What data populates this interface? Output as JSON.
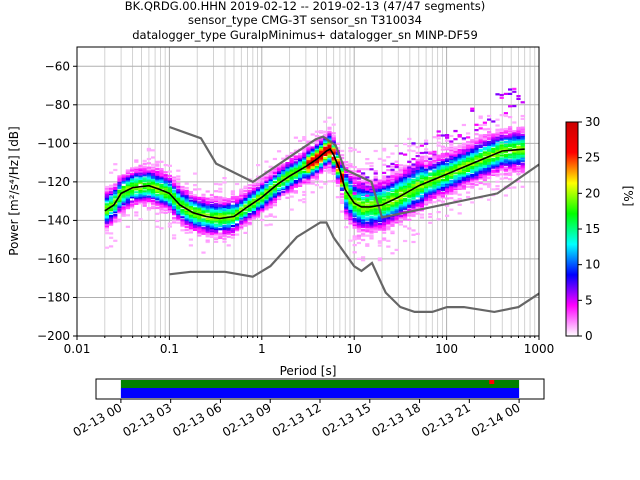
{
  "chart_data": {
    "type": "heatmap",
    "title": [
      "BK.QRDG.00.HHN   2019-02-12 -- 2019-02-13  (47/47 segments)",
      "sensor_type CMG-3T sensor_sn T310034",
      "datalogger_type GuralpMinimus+ datalogger_sn MINP-DF59"
    ],
    "xlabel": "Period [s]",
    "ylabel": "Power [m²/s⁴/Hz] [dB]",
    "x_scale": "log",
    "xlim": [
      0.01,
      1000
    ],
    "ylim": [
      -200,
      -50
    ],
    "x_ticks": [
      "0.01",
      "0.1",
      "1",
      "10",
      "100",
      "1000"
    ],
    "y_ticks": [
      "−200",
      "−180",
      "−160",
      "−140",
      "−120",
      "−100",
      "−80",
      "−60"
    ],
    "grid": true,
    "colorbar": {
      "label": "[%]",
      "range": [
        0,
        30
      ],
      "ticks": [
        "0",
        "5",
        "10",
        "15",
        "20",
        "25",
        "30"
      ],
      "colors": [
        "#ffffff",
        "#ff00ff",
        "#0000ff",
        "#00ffff",
        "#00ff00",
        "#ffff00",
        "#ff0000",
        "#cc0000"
      ]
    },
    "noise_model_high": {
      "color": "#666666",
      "x": [
        0.1,
        0.22,
        0.32,
        0.8,
        3.8,
        4.6,
        6.3,
        7.9,
        15.4,
        20,
        354.8,
        1000
      ],
      "y": [
        -91.5,
        -97.4,
        -110.5,
        -120,
        -98,
        -96.5,
        -101,
        -113.5,
        -120,
        -138.5,
        -126,
        -111
      ]
    },
    "noise_model_low": {
      "color": "#666666",
      "x": [
        0.1,
        0.17,
        0.4,
        0.8,
        1.24,
        2.4,
        4.3,
        5,
        6,
        10,
        12,
        15.6,
        21.9,
        31.6,
        45,
        70,
        101,
        154,
        328,
        600,
        1000
      ],
      "y": [
        -168,
        -166.7,
        -166.7,
        -169.2,
        -163.7,
        -148.6,
        -141.1,
        -141.1,
        -149,
        -163.8,
        -166.2,
        -162.1,
        -177.5,
        -185,
        -187.5,
        -187.5,
        -185,
        -185,
        -187.5,
        -185,
        -178
      ]
    },
    "mode_curve": {
      "color": "#000000",
      "x": [
        0.02,
        0.025,
        0.03,
        0.04,
        0.06,
        0.08,
        0.1,
        0.13,
        0.18,
        0.25,
        0.35,
        0.5,
        0.7,
        1,
        1.5,
        2,
        3,
        4,
        5,
        5.5,
        6,
        7,
        8,
        10,
        12,
        15,
        20,
        30,
        50,
        100,
        200,
        400,
        700
      ],
      "y": [
        -135,
        -132,
        -126,
        -123,
        -122,
        -124,
        -126,
        -132,
        -136,
        -138,
        -139,
        -138,
        -133,
        -128,
        -121,
        -117,
        -112,
        -108,
        -104,
        -103,
        -106,
        -114,
        -124,
        -131,
        -133,
        -133,
        -132,
        -128,
        -122,
        -116,
        -110,
        -104,
        -103
      ]
    },
    "time_axis": {
      "tick_labels": [
        "02-13 00",
        "02-13 03",
        "02-13 06",
        "02-13 09",
        "02-13 12",
        "02-13 15",
        "02-13 18",
        "02-13 21",
        "02-14 00"
      ],
      "range_hours": [
        -1.5,
        25.5
      ],
      "data_hours": [
        0,
        24
      ],
      "bar_colors": {
        "upper": "#008000",
        "lower": "#0000ff",
        "gap": "#ff0000"
      },
      "gaps_hours": [
        22.2,
        22.5
      ]
    }
  }
}
